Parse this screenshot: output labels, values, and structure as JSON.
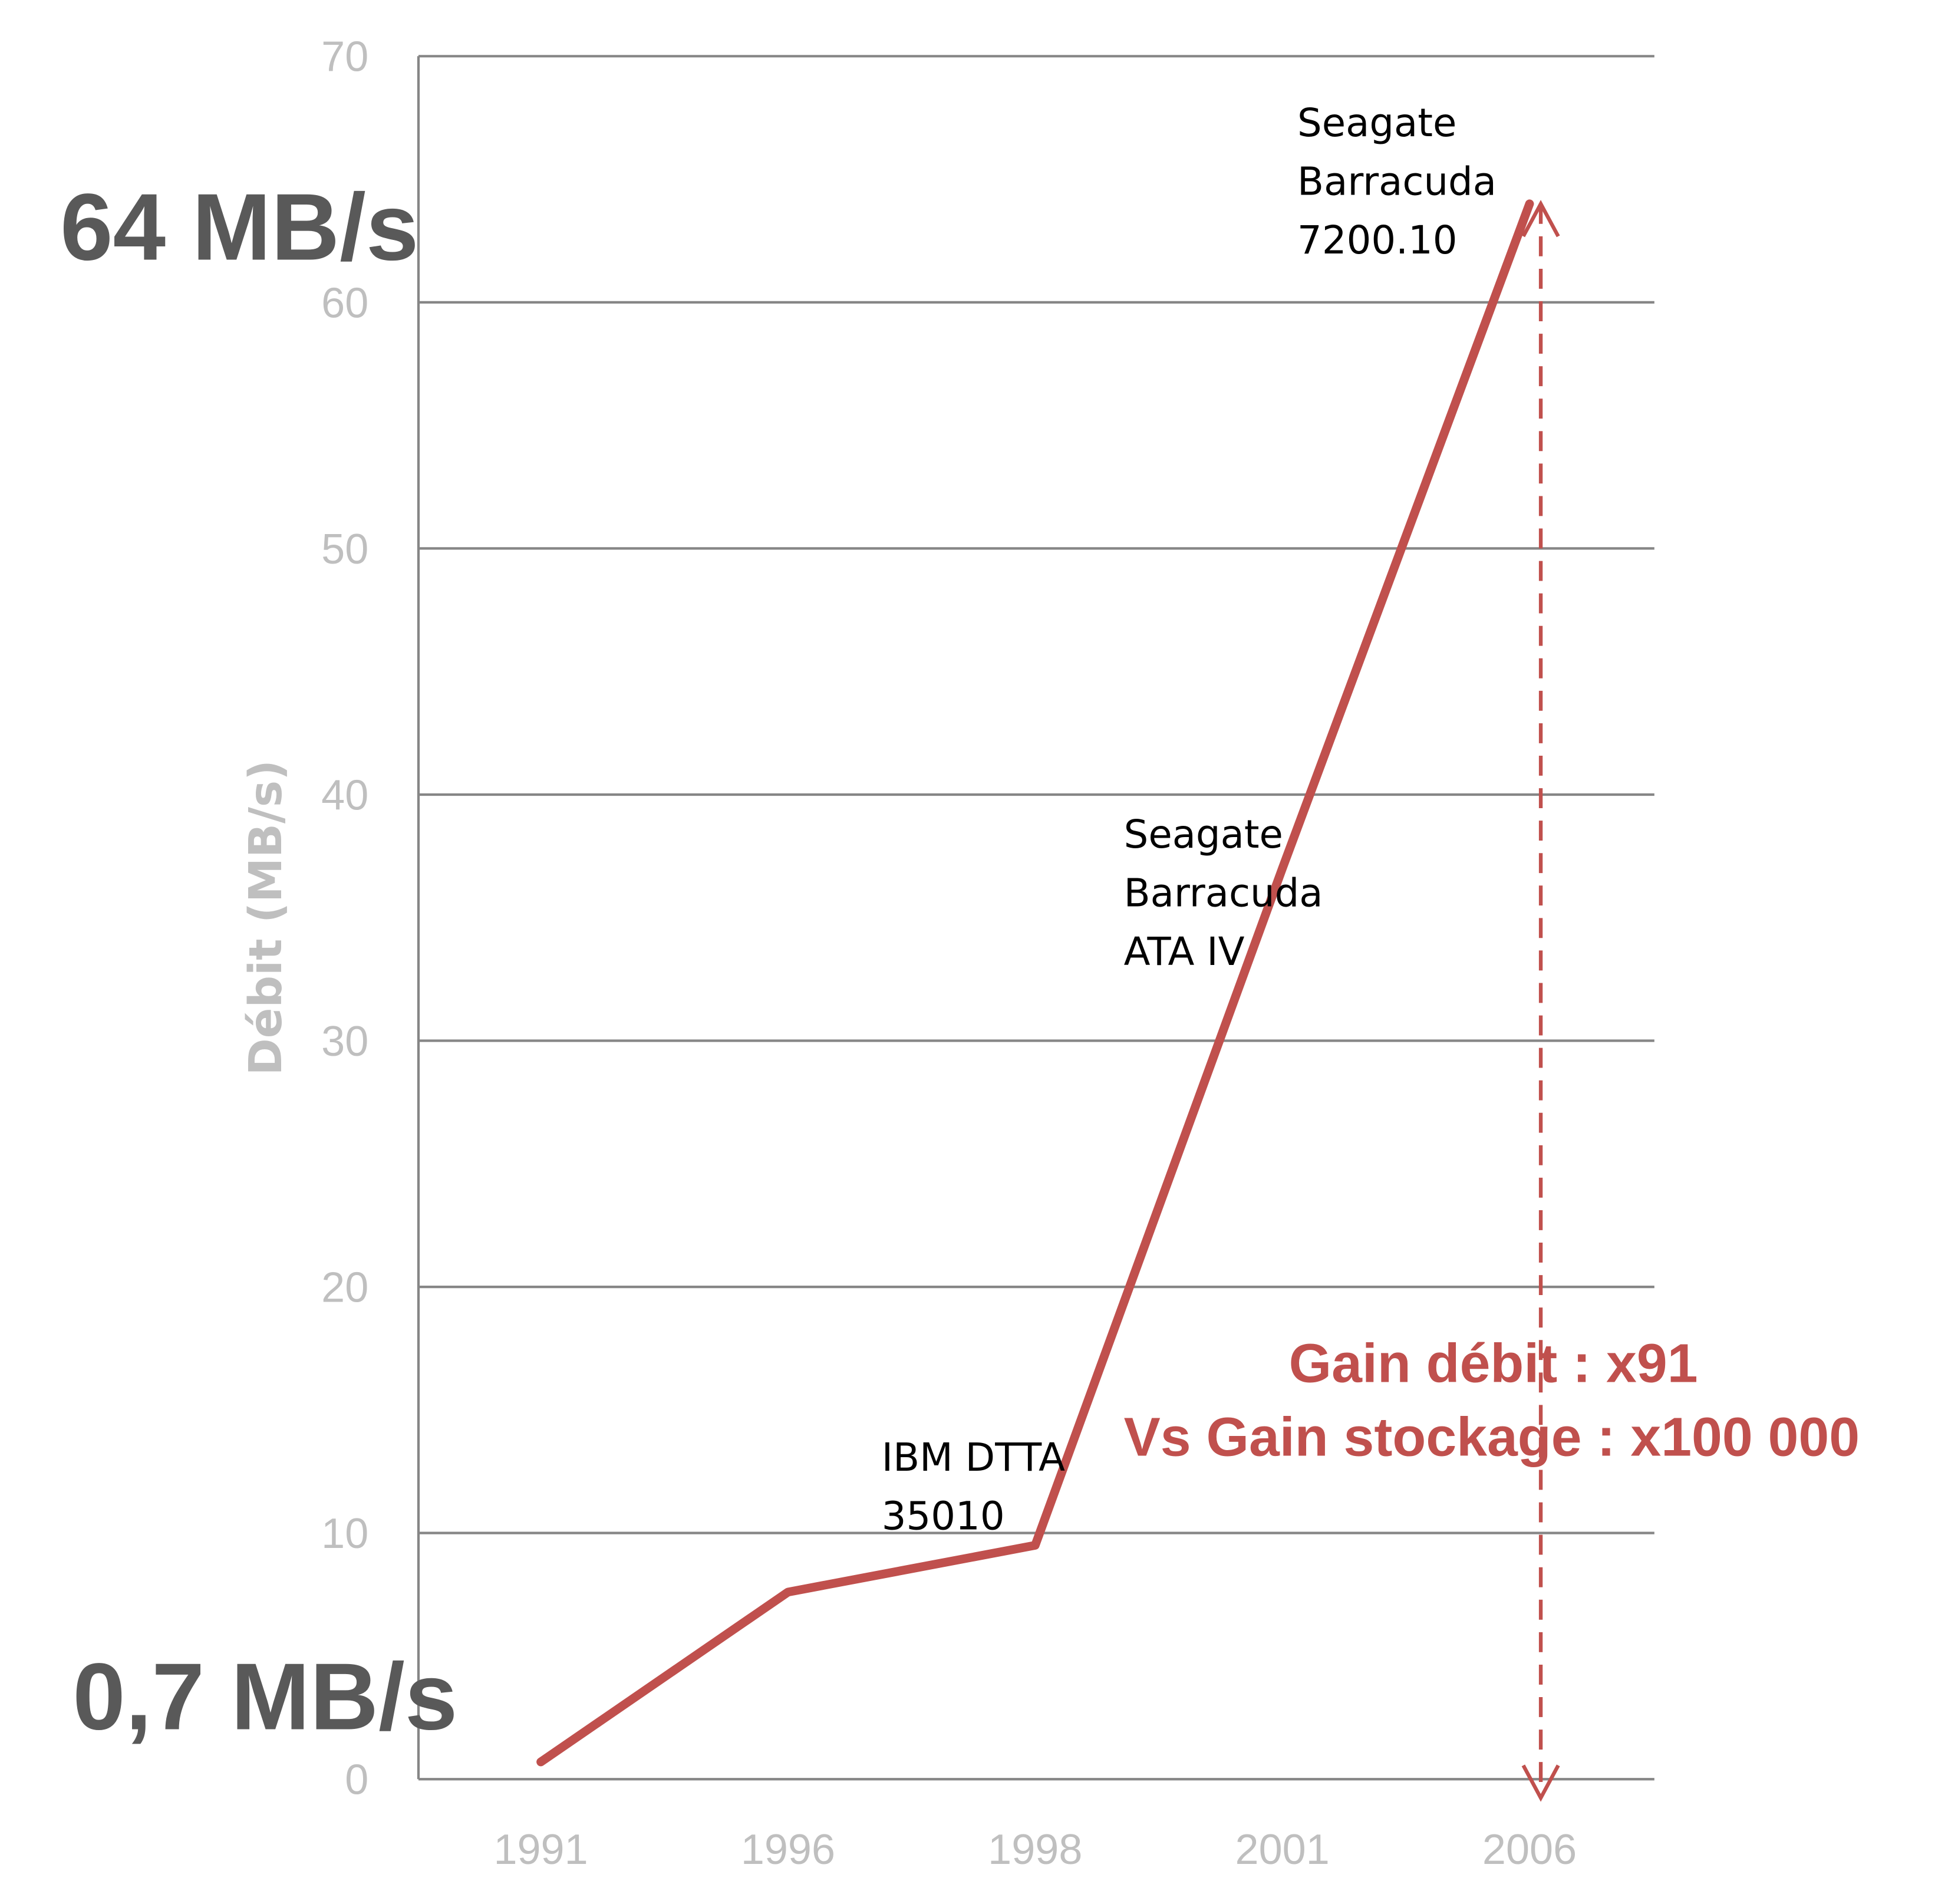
{
  "chart_data": {
    "type": "line",
    "title": "",
    "xlabel": "",
    "ylabel": "Débit (MB/s)",
    "categories": [
      "1991",
      "1996",
      "1998",
      "2001",
      "2006"
    ],
    "series": [
      {
        "name": "Débit",
        "values": [
          0.7,
          7.6,
          9.5,
          37,
          64
        ],
        "color": "#c0504d"
      }
    ],
    "ylim": [
      0,
      70
    ],
    "yticks": [
      0,
      10,
      20,
      30,
      40,
      50,
      60,
      70
    ],
    "grid": true,
    "legend": "none",
    "annotations": [
      {
        "category": "1998",
        "lines": [
          "IBM DTTA",
          "35010"
        ]
      },
      {
        "category": "2001",
        "lines": [
          "Seagate",
          "Barracuda",
          "ATA IV"
        ]
      },
      {
        "category": "2006",
        "lines": [
          "Seagate",
          "Barracuda",
          "7200.10"
        ]
      }
    ],
    "callouts": {
      "top_value": "64 MB/s",
      "bottom_value": "0,7 MB/s",
      "gain_line1": "Gain débit : x91",
      "gain_line2": "Vs Gain stockage : x100 000"
    }
  }
}
